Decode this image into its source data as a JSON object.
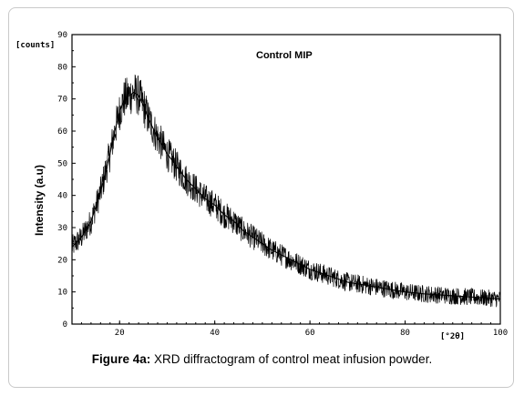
{
  "caption": {
    "label": "Figure 4a:",
    "text": " XRD diffractogram of control meat infusion powder."
  },
  "chart_data": {
    "type": "line",
    "annotation": "Control MIP",
    "ylabel": "Intensity (a.u)",
    "y_units_label": "[counts]",
    "x_units_label": "[°2θ]",
    "xlim": [
      10,
      100
    ],
    "ylim": [
      0,
      90
    ],
    "x_ticks": [
      20,
      40,
      60,
      80,
      100
    ],
    "x_tick_labels": [
      "20",
      "40",
      "60",
      "80",
      "100"
    ],
    "y_ticks": [
      0,
      10,
      20,
      30,
      40,
      50,
      60,
      70,
      80,
      90
    ],
    "y_tick_labels": [
      "0",
      "10",
      "20",
      "30",
      "40",
      "50",
      "60",
      "70",
      "80",
      "90"
    ],
    "grid": false,
    "line_color": "#000000",
    "series": [
      {
        "x": [
          10,
          12,
          14,
          16,
          18,
          19,
          20,
          21,
          22,
          23,
          24,
          25,
          26,
          28,
          30,
          32,
          34,
          36,
          38,
          40,
          42,
          44,
          46,
          48,
          50,
          52,
          54,
          56,
          58,
          60,
          62,
          64,
          66,
          68,
          70,
          72,
          74,
          76,
          78,
          80,
          82,
          84,
          86,
          88,
          90,
          92,
          94,
          96,
          98,
          100
        ],
        "y": [
          24,
          27,
          32,
          41,
          53,
          60,
          66,
          70,
          71,
          72,
          71,
          68,
          64,
          58,
          53,
          49,
          45,
          42,
          39,
          37,
          34,
          32,
          29,
          27,
          25,
          23,
          21.5,
          20,
          18.5,
          17,
          16,
          15,
          14,
          13,
          12.5,
          12,
          11.5,
          11,
          10.5,
          10,
          9.7,
          9.4,
          9.2,
          9,
          8.8,
          8.6,
          8.4,
          8.2,
          8,
          7.8
        ]
      }
    ]
  }
}
